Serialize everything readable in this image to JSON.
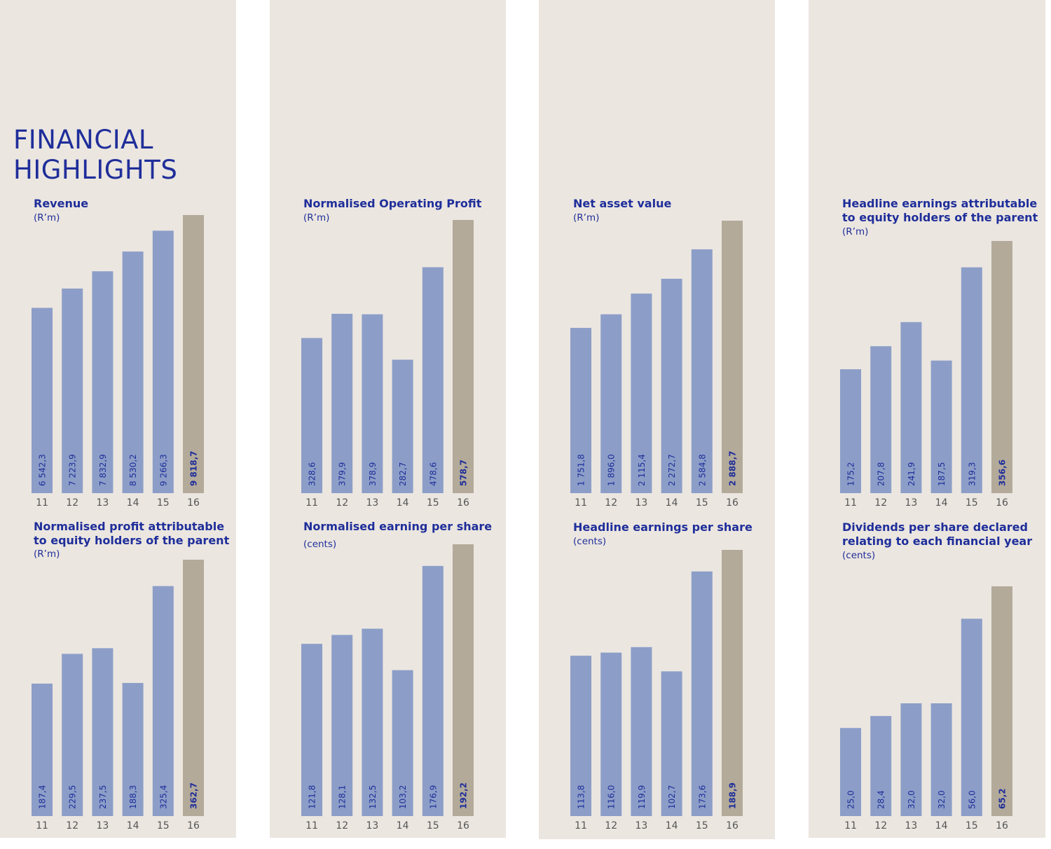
{
  "page_title": [
    "FINANCIAL",
    "HIGHLIGHTS"
  ],
  "colors": {
    "panel_background": "#ebe6e0",
    "bar_prior_years": "#8c9ec8",
    "bar_current_year": "#b3aa9a",
    "text_accent": "#1f2e9a",
    "axis_label": "#555555"
  },
  "chart_data": [
    {
      "type": "bar",
      "title_lines": [
        "Revenue"
      ],
      "unit": "(R’m)",
      "categories": [
        "11",
        "12",
        "13",
        "14",
        "15",
        "16"
      ],
      "values": [
        6542.3,
        7223.9,
        7832.9,
        8530.2,
        9266.3,
        9818.7
      ],
      "value_labels": [
        "6 542,3",
        "7 223,9",
        "7 832,9",
        "8 530,2",
        "9 266,3",
        "9 818,7"
      ],
      "highlight_index": 5
    },
    {
      "type": "bar",
      "title_lines": [
        "Normalised Operating Profit"
      ],
      "unit": "(R’m)",
      "categories": [
        "11",
        "12",
        "13",
        "14",
        "15",
        "16"
      ],
      "values": [
        328.6,
        379.9,
        378.9,
        282.7,
        478.6,
        578.7
      ],
      "value_labels": [
        "328,6",
        "379,9",
        "378,9",
        "282,7",
        "478,6",
        "578,7"
      ],
      "highlight_index": 5
    },
    {
      "type": "bar",
      "title_lines": [
        "Net asset value"
      ],
      "unit": "(R’m)",
      "categories": [
        "11",
        "12",
        "13",
        "14",
        "15",
        "16"
      ],
      "values": [
        1751.8,
        1896.0,
        2115.4,
        2272.7,
        2584.8,
        2888.7
      ],
      "value_labels": [
        "1 751,8",
        "1 896,0",
        "2 115,4",
        "2 272,7",
        "2 584,8",
        "2 888,7"
      ],
      "highlight_index": 5
    },
    {
      "type": "bar",
      "title_lines": [
        "Headline earnings attributable",
        "to equity holders of the parent"
      ],
      "unit": "(R’m)",
      "categories": [
        "11",
        "12",
        "13",
        "14",
        "15",
        "16"
      ],
      "values": [
        175.2,
        207.8,
        241.9,
        187.5,
        319.3,
        356.6
      ],
      "value_labels": [
        "175,2",
        "207,8",
        "241,9",
        "187,5",
        "319,3",
        "356,6"
      ],
      "highlight_index": 5
    },
    {
      "type": "bar",
      "title_lines": [
        "Normalised profit attributable",
        "to equity holders of the parent"
      ],
      "unit": "(R’m)",
      "categories": [
        "11",
        "12",
        "13",
        "14",
        "15",
        "16"
      ],
      "values": [
        187.4,
        229.5,
        237.5,
        188.3,
        325.4,
        362.7
      ],
      "value_labels": [
        "187,4",
        "229,5",
        "237,5",
        "188,3",
        "325,4",
        "362,7"
      ],
      "highlight_index": 5
    },
    {
      "type": "bar",
      "title_lines": [
        "Normalised earning per share"
      ],
      "unit": "(cents)",
      "categories": [
        "11",
        "12",
        "13",
        "14",
        "15",
        "16"
      ],
      "values": [
        121.8,
        128.1,
        132.5,
        103.2,
        176.9,
        192.2
      ],
      "value_labels": [
        "121,8",
        "128,1",
        "132,5",
        "103,2",
        "176,9",
        "192,2"
      ],
      "highlight_index": 5
    },
    {
      "type": "bar",
      "title_lines": [
        "Headline earnings per share"
      ],
      "unit": "(cents)",
      "categories": [
        "11",
        "12",
        "13",
        "14",
        "15",
        "16"
      ],
      "values": [
        113.8,
        116.0,
        119.9,
        102.7,
        173.6,
        188.9
      ],
      "value_labels": [
        "113,8",
        "116,0",
        "119,9",
        "102,7",
        "173,6",
        "188,9"
      ],
      "highlight_index": 5
    },
    {
      "type": "bar",
      "title_lines": [
        "Dividends per share declared",
        "relating to each financial year"
      ],
      "unit": "(cents)",
      "categories": [
        "11",
        "12",
        "13",
        "14",
        "15",
        "16"
      ],
      "values": [
        25.0,
        28.4,
        32.0,
        32.0,
        56.0,
        65.2
      ],
      "value_labels": [
        "25,0",
        "28,4",
        "32,0",
        "32,0",
        "56,0",
        "65,2"
      ],
      "highlight_index": 5
    }
  ]
}
